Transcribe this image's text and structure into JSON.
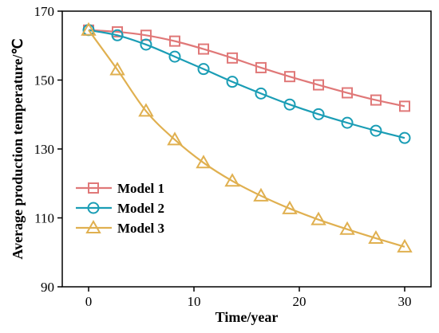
{
  "chart_data": {
    "type": "line",
    "xlabel": "Time/year",
    "ylabel": "Average production temperature/℃",
    "xlim": [
      -2.5,
      32.5
    ],
    "ylim": [
      90,
      170
    ],
    "xticks": [
      0,
      10,
      20,
      30
    ],
    "yticks": [
      90,
      110,
      130,
      150,
      170
    ],
    "grid": false,
    "legend_position": "bottom-left",
    "series": [
      {
        "name": "Model 1",
        "color": "#e07878",
        "marker": "square",
        "x": [
          0,
          2.73,
          5.45,
          8.18,
          10.91,
          13.64,
          16.36,
          19.09,
          21.82,
          24.55,
          27.27,
          30
        ],
        "y": [
          164.5,
          164.0,
          163.0,
          161.3,
          159.0,
          156.4,
          153.6,
          151.0,
          148.6,
          146.3,
          144.2,
          142.4
        ]
      },
      {
        "name": "Model 2",
        "color": "#1a9db5",
        "marker": "circle",
        "x": [
          0,
          2.73,
          5.45,
          8.18,
          10.91,
          13.64,
          16.36,
          19.09,
          21.82,
          24.55,
          27.27,
          30
        ],
        "y": [
          164.5,
          163.0,
          160.3,
          156.8,
          153.2,
          149.5,
          146.1,
          142.9,
          140.1,
          137.6,
          135.3,
          133.2
        ]
      },
      {
        "name": "Model 3",
        "color": "#e0b050",
        "marker": "triangle",
        "x": [
          0,
          2.73,
          5.45,
          8.18,
          10.91,
          13.64,
          16.36,
          19.09,
          21.82,
          24.55,
          27.27,
          30
        ],
        "y": [
          164.5,
          153.0,
          141.0,
          132.7,
          126.0,
          120.7,
          116.4,
          112.7,
          109.5,
          106.7,
          104.1,
          101.6
        ]
      }
    ]
  }
}
